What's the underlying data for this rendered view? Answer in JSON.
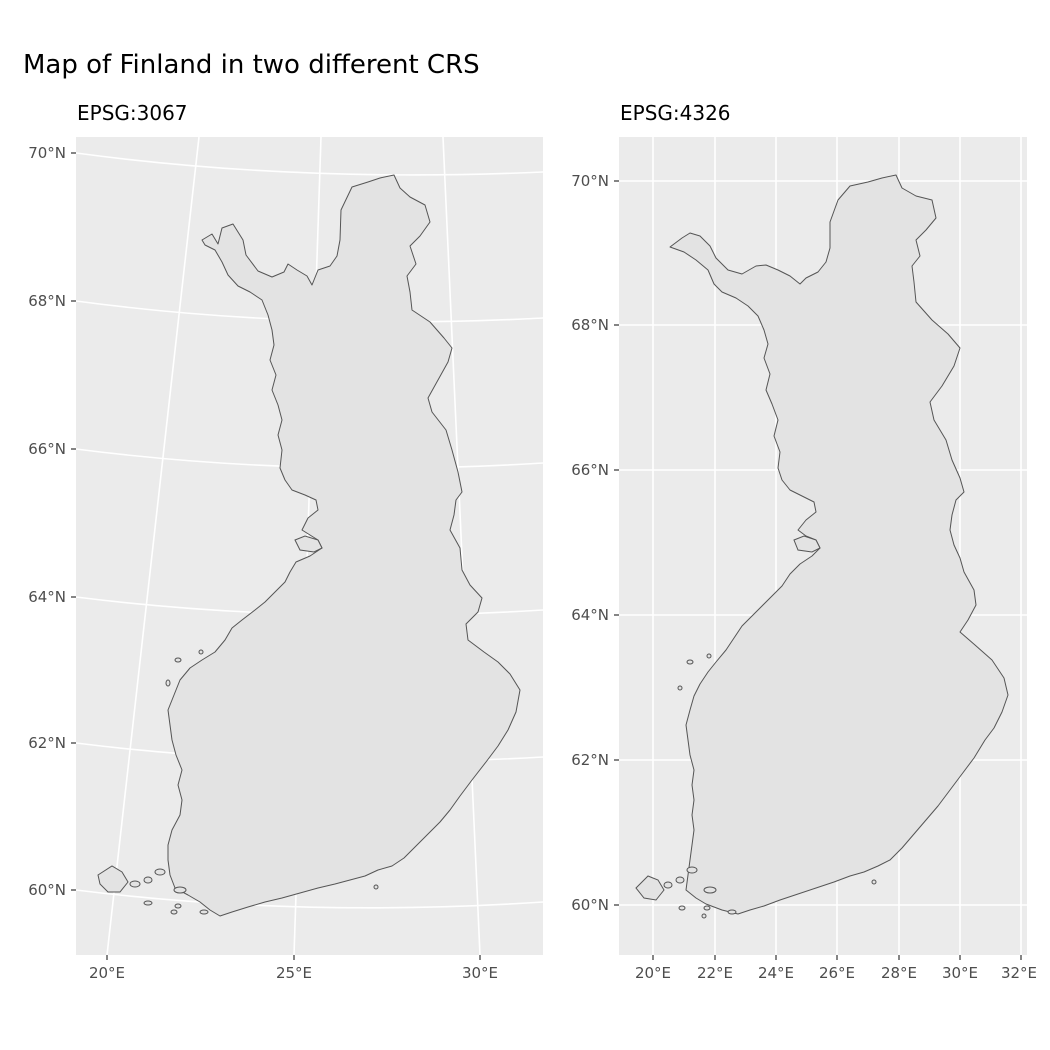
{
  "title": "Map of Finland in two different CRS",
  "colors": {
    "panel_background": "#ebebeb",
    "grid": "#ffffff",
    "land_fill": "#e3e3e3",
    "land_outline": "#555555",
    "axis_text": "#4d4d4d"
  },
  "panels": [
    {
      "subtitle": "EPSG:3067",
      "x_ticks": [
        "20°E",
        "25°E",
        "30°E"
      ],
      "y_ticks": [
        "60°N",
        "62°N",
        "64°N",
        "66°N",
        "68°N",
        "70°N"
      ]
    },
    {
      "subtitle": "EPSG:4326",
      "x_ticks": [
        "20°E",
        "22°E",
        "24°E",
        "26°E",
        "28°E",
        "30°E",
        "32°E"
      ],
      "y_ticks": [
        "60°N",
        "62°N",
        "64°N",
        "66°N",
        "68°N",
        "70°N"
      ]
    }
  ],
  "map_data": {
    "region": "Finland",
    "projections": [
      "EPSG:3067",
      "EPSG:4326"
    ],
    "lon_range": [
      19,
      32
    ],
    "lat_range": [
      59.5,
      70.2
    ]
  }
}
